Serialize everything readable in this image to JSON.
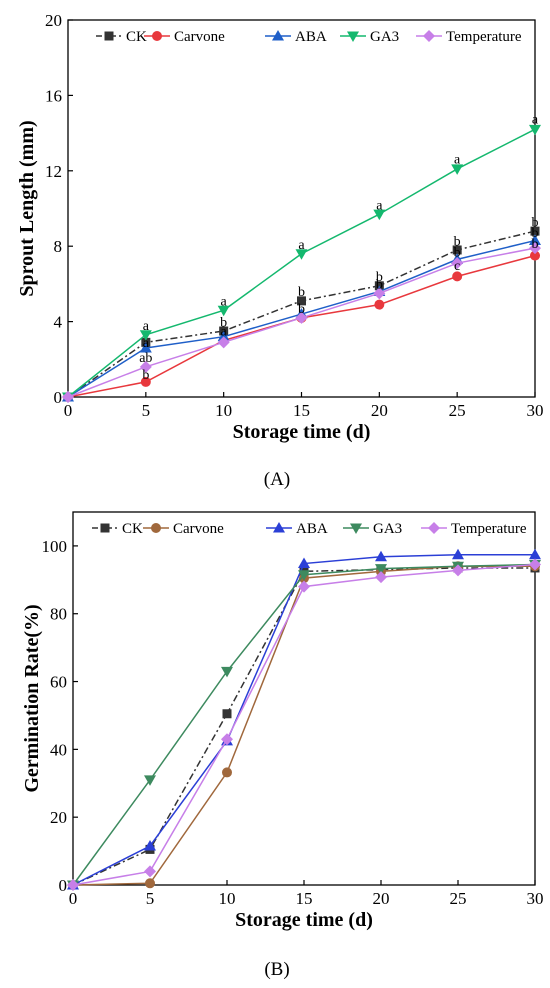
{
  "chart_data": [
    {
      "type": "line",
      "panel_label": "(A)",
      "xlabel": "Storage time (d)",
      "ylabel": "Sprout Length (mm)",
      "x": [
        0,
        5,
        10,
        15,
        20,
        25,
        30
      ],
      "xlim": [
        0,
        30
      ],
      "ylim": [
        0,
        20
      ],
      "xticks": [
        0,
        5,
        10,
        15,
        20,
        25,
        30
      ],
      "yticks": [
        0,
        4,
        8,
        12,
        16,
        20
      ],
      "legend": "top, horizontal",
      "grid": false,
      "series": [
        {
          "name": "CK",
          "color": "#333333",
          "marker": "square",
          "dash": "dashdot",
          "values": [
            0,
            2.9,
            3.5,
            5.1,
            5.9,
            7.8,
            8.8
          ]
        },
        {
          "name": "Carvone",
          "color": "#e8383d",
          "marker": "circle",
          "dash": "solid",
          "values": [
            0,
            0.8,
            3.0,
            4.2,
            4.9,
            6.4,
            7.5
          ]
        },
        {
          "name": "ABA",
          "color": "#1f5fc8",
          "marker": "triangle-up",
          "dash": "solid",
          "values": [
            0,
            2.6,
            3.2,
            4.4,
            5.6,
            7.3,
            8.3
          ]
        },
        {
          "name": "GA3",
          "color": "#14b86e",
          "marker": "triangle-down",
          "dash": "solid",
          "values": [
            0,
            3.3,
            4.6,
            7.6,
            9.7,
            12.1,
            14.2
          ]
        },
        {
          "name": "Temperature",
          "color": "#c77fe8",
          "marker": "diamond",
          "dash": "solid",
          "values": [
            0,
            1.6,
            2.9,
            4.2,
            5.5,
            7.1,
            7.9
          ]
        }
      ],
      "annotations": [
        {
          "x": 5,
          "y": 3.55,
          "text": "a"
        },
        {
          "x": 5,
          "y": 2.65,
          "text": "a"
        },
        {
          "x": 5,
          "y": 1.85,
          "text": "ab"
        },
        {
          "x": 5,
          "y": 0.95,
          "text": "b"
        },
        {
          "x": 10,
          "y": 4.85,
          "text": "a"
        },
        {
          "x": 10,
          "y": 3.75,
          "text": "b"
        },
        {
          "x": 10,
          "y": 3.25,
          "text": "a"
        },
        {
          "x": 15,
          "y": 7.85,
          "text": "a"
        },
        {
          "x": 15,
          "y": 5.35,
          "text": "b"
        },
        {
          "x": 15,
          "y": 4.45,
          "text": "b"
        },
        {
          "x": 20,
          "y": 9.95,
          "text": "a"
        },
        {
          "x": 20,
          "y": 6.15,
          "text": "b"
        },
        {
          "x": 20,
          "y": 5.75,
          "text": "b"
        },
        {
          "x": 25,
          "y": 12.4,
          "text": "a"
        },
        {
          "x": 25,
          "y": 8.05,
          "text": "b"
        },
        {
          "x": 25,
          "y": 7.45,
          "text": "b"
        },
        {
          "x": 25,
          "y": 6.75,
          "text": "c"
        },
        {
          "x": 30,
          "y": 14.5,
          "text": "a"
        },
        {
          "x": 30,
          "y": 9.05,
          "text": "b"
        },
        {
          "x": 30,
          "y": 8.5,
          "text": "b"
        },
        {
          "x": 30,
          "y": 7.9,
          "text": "b"
        }
      ]
    },
    {
      "type": "line",
      "panel_label": "(B)",
      "xlabel": "Storage time (d)",
      "ylabel": "Germination Rate(%)",
      "x": [
        0,
        5,
        10,
        15,
        20,
        25,
        30
      ],
      "xlim": [
        0,
        30
      ],
      "ylim": [
        0,
        110
      ],
      "xticks": [
        0,
        5,
        10,
        15,
        20,
        25,
        30
      ],
      "yticks": [
        0,
        20,
        40,
        60,
        80,
        100
      ],
      "legend": "top, horizontal",
      "grid": false,
      "series": [
        {
          "name": "CK",
          "color": "#333333",
          "marker": "square",
          "dash": "dashdot",
          "values": [
            0,
            10.5,
            50.5,
            92.5,
            93,
            93.5,
            93.5
          ]
        },
        {
          "name": "Carvone",
          "color": "#a0683c",
          "marker": "circle",
          "dash": "solid",
          "values": [
            0,
            0.5,
            33.2,
            90.5,
            92.5,
            94,
            94
          ]
        },
        {
          "name": "ABA",
          "color": "#2b3fd6",
          "marker": "triangle-up",
          "dash": "solid",
          "values": [
            0,
            11.5,
            42.5,
            94.8,
            96.8,
            97.4,
            97.4
          ]
        },
        {
          "name": "GA3",
          "color": "#3d8a5f",
          "marker": "triangle-down",
          "dash": "solid",
          "values": [
            0,
            31,
            63,
            91.5,
            93.3,
            94,
            94.5
          ]
        },
        {
          "name": "Temperature",
          "color": "#c77fe8",
          "marker": "diamond",
          "dash": "solid",
          "values": [
            0,
            4,
            43,
            88,
            90.8,
            92.8,
            94.5
          ]
        }
      ]
    }
  ]
}
